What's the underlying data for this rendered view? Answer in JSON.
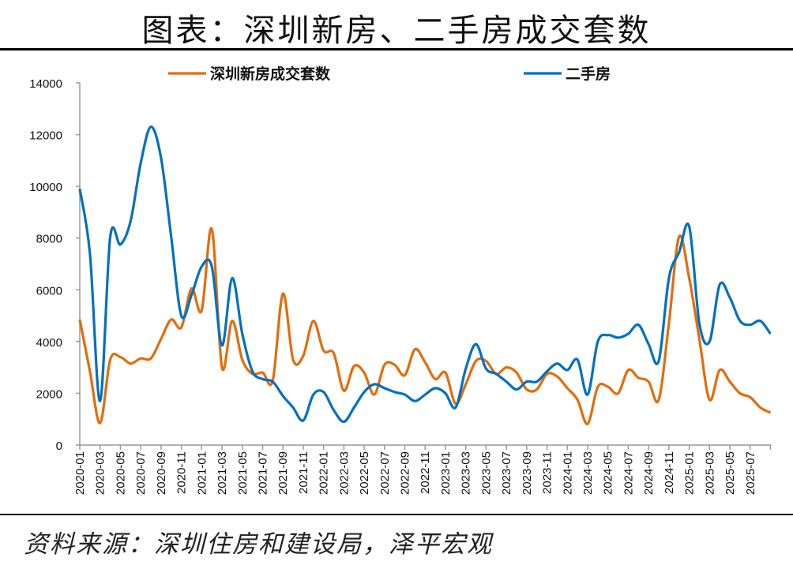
{
  "title": "图表：深圳新房、二手房成交套数",
  "source": "资料来源：深圳住房和建设局，泽平宏观",
  "chart_data": {
    "type": "line",
    "title": "",
    "xlabel": "",
    "ylabel": "",
    "ylim": [
      0,
      14000
    ],
    "yticks": [
      0,
      2000,
      4000,
      6000,
      8000,
      10000,
      12000,
      14000
    ],
    "grid": false,
    "legend": "top",
    "categories": [
      "2020-01",
      "2020-02",
      "2020-03",
      "2020-04",
      "2020-05",
      "2020-06",
      "2020-07",
      "2020-08",
      "2020-09",
      "2020-10",
      "2020-11",
      "2020-12",
      "2021-01",
      "2021-02",
      "2021-03",
      "2021-04",
      "2021-05",
      "2021-06",
      "2021-07",
      "2021-08",
      "2021-09",
      "2021-10",
      "2021-11",
      "2021-12",
      "2022-01",
      "2022-02",
      "2022-03",
      "2022-04",
      "2022-05",
      "2022-06",
      "2022-07",
      "2022-08",
      "2022-09",
      "2022-10",
      "2022-11",
      "2022-12",
      "2023-01",
      "2023-02",
      "2023-03",
      "2023-04",
      "2023-05",
      "2023-06",
      "2023-07",
      "2023-08",
      "2023-09",
      "2023-10",
      "2023-11",
      "2023-12",
      "2024-01",
      "2024-02",
      "2024-03",
      "2024-04",
      "2024-05",
      "2024-06",
      "2024-07",
      "2024-08",
      "2024-09",
      "2024-10",
      "2024-11",
      "2024-12",
      "2025-01",
      "2025-02",
      "2025-03",
      "2025-04",
      "2025-05",
      "2025-06",
      "2025-07",
      "2025-08",
      "2025-09"
    ],
    "tick_labels": [
      "2020-01",
      "2020-03",
      "2020-05",
      "2020-07",
      "2020-09",
      "2020-11",
      "2021-01",
      "2021-03",
      "2021-05",
      "2021-07",
      "2021-09",
      "2021-11",
      "2022-01",
      "2022-03",
      "2022-05",
      "2022-07",
      "2022-09",
      "2022-11",
      "2023-01",
      "2023-03",
      "2023-05",
      "2023-07",
      "2023-09",
      "2023-11",
      "2024-01",
      "2024-03",
      "2024-05",
      "2024-07",
      "2024-09",
      "2024-11",
      "2025-01",
      "2025-03",
      "2025-05",
      "2025-07"
    ],
    "series": [
      {
        "name": "深圳新房成交套数",
        "color": "#E46C0A",
        "values": [
          4850,
          2850,
          850,
          3300,
          3400,
          3150,
          3350,
          3350,
          4100,
          4850,
          4550,
          6050,
          5200,
          8350,
          3000,
          4800,
          3300,
          2750,
          2800,
          2500,
          5850,
          3300,
          3450,
          4800,
          3650,
          3550,
          2100,
          3050,
          2800,
          1950,
          3100,
          3100,
          2700,
          3700,
          3200,
          2550,
          2800,
          1600,
          2350,
          3250,
          3250,
          2750,
          3000,
          2800,
          2150,
          2150,
          2750,
          2650,
          2200,
          1750,
          820,
          2250,
          2250,
          2000,
          2900,
          2600,
          2450,
          1750,
          4700,
          8050,
          6450,
          4100,
          1750,
          2900,
          2450,
          2000,
          1850,
          1450,
          1250
        ]
      },
      {
        "name": "二手房",
        "color": "#0070C0",
        "values": [
          9900,
          7400,
          1700,
          8050,
          7750,
          8650,
          10900,
          12300,
          11100,
          8050,
          5000,
          5800,
          6900,
          6900,
          3850,
          6450,
          4300,
          2850,
          2550,
          2450,
          1900,
          1450,
          950,
          1950,
          2050,
          1350,
          900,
          1450,
          2050,
          2350,
          2200,
          2050,
          1950,
          1700,
          1950,
          2200,
          2000,
          1450,
          2950,
          3900,
          2950,
          2750,
          2450,
          2150,
          2450,
          2450,
          2850,
          3150,
          2900,
          3300,
          1950,
          4000,
          4250,
          4150,
          4300,
          4650,
          3900,
          3250,
          6450,
          7450,
          8450,
          4700,
          4000,
          6200,
          5700,
          4800,
          4650,
          4800,
          4300
        ]
      }
    ]
  }
}
